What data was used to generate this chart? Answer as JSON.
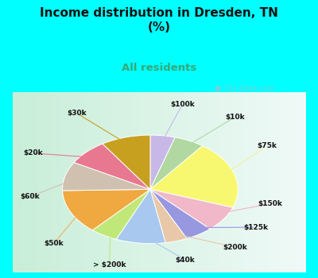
{
  "title": "Income distribution in Dresden, TN\n(%)",
  "subtitle": "All residents",
  "title_color": "#111111",
  "subtitle_color": "#33aa77",
  "bg_cyan": "#00ffff",
  "bg_chart_color1": "#e8f8ee",
  "bg_chart_color2": "#f8fffe",
  "watermark": "City-Data.com",
  "labels": [
    "$100k",
    "$10k",
    "$75k",
    "$150k",
    "$125k",
    "$200k",
    "$40k",
    "> $200k",
    "$50k",
    "$60k",
    "$20k",
    "$30k"
  ],
  "sizes": [
    4.5,
    5.5,
    20.0,
    7.5,
    5.0,
    4.0,
    9.0,
    5.0,
    13.0,
    8.5,
    7.5,
    9.0
  ],
  "colors": [
    "#c8b8e8",
    "#b0d8a0",
    "#f8f870",
    "#f0b8c8",
    "#9898e0",
    "#e8c8a8",
    "#a8c8f0",
    "#c0e878",
    "#f0a840",
    "#d0c0b0",
    "#e87890",
    "#c8a020"
  ],
  "label_color": "#111111",
  "line_colors": [
    "#c8b8e8",
    "#b0d8a0",
    "#f0f0a0",
    "#f0b8c8",
    "#9898e0",
    "#e8c8a8",
    "#a8c8f0",
    "#c0e878",
    "#f0b060",
    "#d0c0b0",
    "#e87890",
    "#c8a020"
  ]
}
